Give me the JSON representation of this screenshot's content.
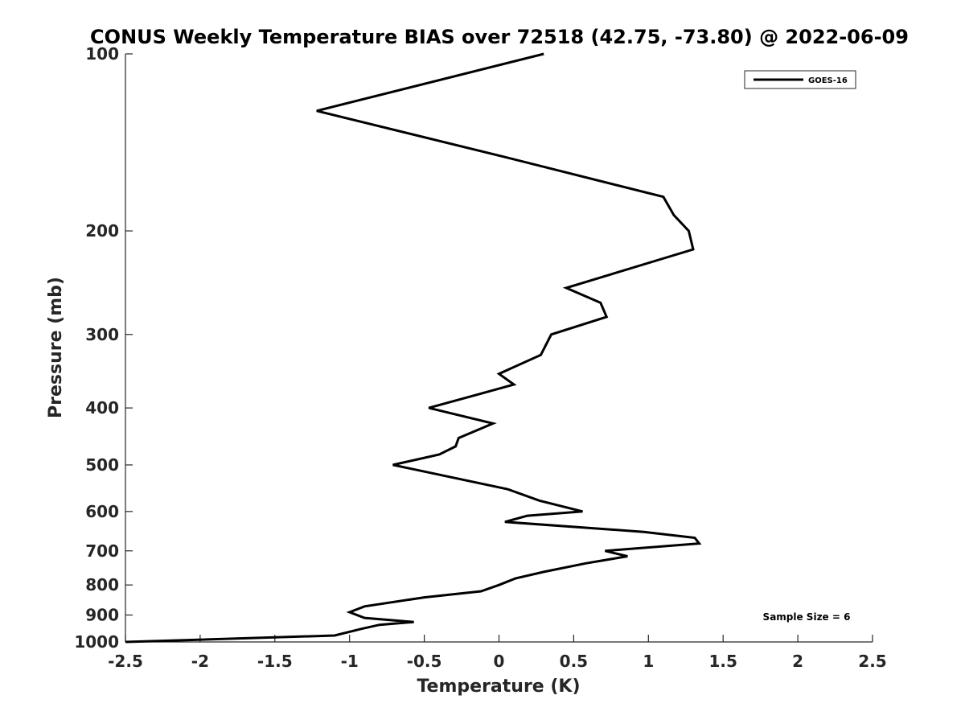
{
  "chart_data": {
    "type": "line",
    "title": "CONUS Weekly Temperature BIAS over 72518 (42.75, -73.80) @ 2022-06-09",
    "xlabel": "Temperature (K)",
    "ylabel": "Pressure (mb)",
    "xlim": [
      -2.5,
      2.5
    ],
    "ylim": [
      1000,
      100
    ],
    "y_scale": "log",
    "y_reversed": true,
    "x_ticks": [
      -2.5,
      -2,
      -1.5,
      -1,
      -0.5,
      0,
      0.5,
      1,
      1.5,
      2,
      2.5
    ],
    "x_tick_labels": [
      "-2.5",
      "-2",
      "-1.5",
      "-1",
      "-0.5",
      "0",
      "0.5",
      "1",
      "1.5",
      "2",
      "2.5"
    ],
    "y_ticks": [
      100,
      200,
      300,
      400,
      500,
      600,
      700,
      800,
      900,
      1000
    ],
    "y_tick_labels": [
      "100",
      "200",
      "300",
      "400",
      "500",
      "600",
      "700",
      "800",
      "900",
      "1000"
    ],
    "legend": {
      "placement": "top-right",
      "entries": [
        "GOES-16"
      ]
    },
    "annotation": "Sample Size = 6",
    "grid": false,
    "series": [
      {
        "name": "GOES-16",
        "color": "#000000",
        "points": [
          {
            "x": 0.3,
            "y": 100
          },
          {
            "x": -1.22,
            "y": 125
          },
          {
            "x": 0.05,
            "y": 150
          },
          {
            "x": 1.1,
            "y": 175
          },
          {
            "x": 1.17,
            "y": 188
          },
          {
            "x": 1.27,
            "y": 200
          },
          {
            "x": 1.3,
            "y": 215
          },
          {
            "x": 0.45,
            "y": 250
          },
          {
            "x": 0.68,
            "y": 265
          },
          {
            "x": 0.72,
            "y": 280
          },
          {
            "x": 0.35,
            "y": 300
          },
          {
            "x": 0.28,
            "y": 325
          },
          {
            "x": 0.0,
            "y": 350
          },
          {
            "x": 0.1,
            "y": 365
          },
          {
            "x": -0.15,
            "y": 380
          },
          {
            "x": -0.47,
            "y": 400
          },
          {
            "x": -0.04,
            "y": 425
          },
          {
            "x": -0.27,
            "y": 450
          },
          {
            "x": -0.29,
            "y": 465
          },
          {
            "x": -0.4,
            "y": 480
          },
          {
            "x": -0.71,
            "y": 500
          },
          {
            "x": 0.06,
            "y": 550
          },
          {
            "x": 0.27,
            "y": 575
          },
          {
            "x": 0.56,
            "y": 600
          },
          {
            "x": 0.19,
            "y": 610
          },
          {
            "x": 0.04,
            "y": 625
          },
          {
            "x": 0.97,
            "y": 650
          },
          {
            "x": 1.31,
            "y": 665
          },
          {
            "x": 1.34,
            "y": 680
          },
          {
            "x": 0.71,
            "y": 700
          },
          {
            "x": 0.86,
            "y": 715
          },
          {
            "x": 0.58,
            "y": 735
          },
          {
            "x": 0.3,
            "y": 760
          },
          {
            "x": 0.11,
            "y": 780
          },
          {
            "x": 0.0,
            "y": 800
          },
          {
            "x": -0.12,
            "y": 820
          },
          {
            "x": -0.5,
            "y": 840
          },
          {
            "x": -0.9,
            "y": 870
          },
          {
            "x": -1.0,
            "y": 890
          },
          {
            "x": -0.9,
            "y": 910
          },
          {
            "x": -0.57,
            "y": 925
          },
          {
            "x": -0.8,
            "y": 935
          },
          {
            "x": -0.92,
            "y": 950
          },
          {
            "x": -1.1,
            "y": 975
          },
          {
            "x": -2.5,
            "y": 1000
          }
        ]
      }
    ]
  }
}
